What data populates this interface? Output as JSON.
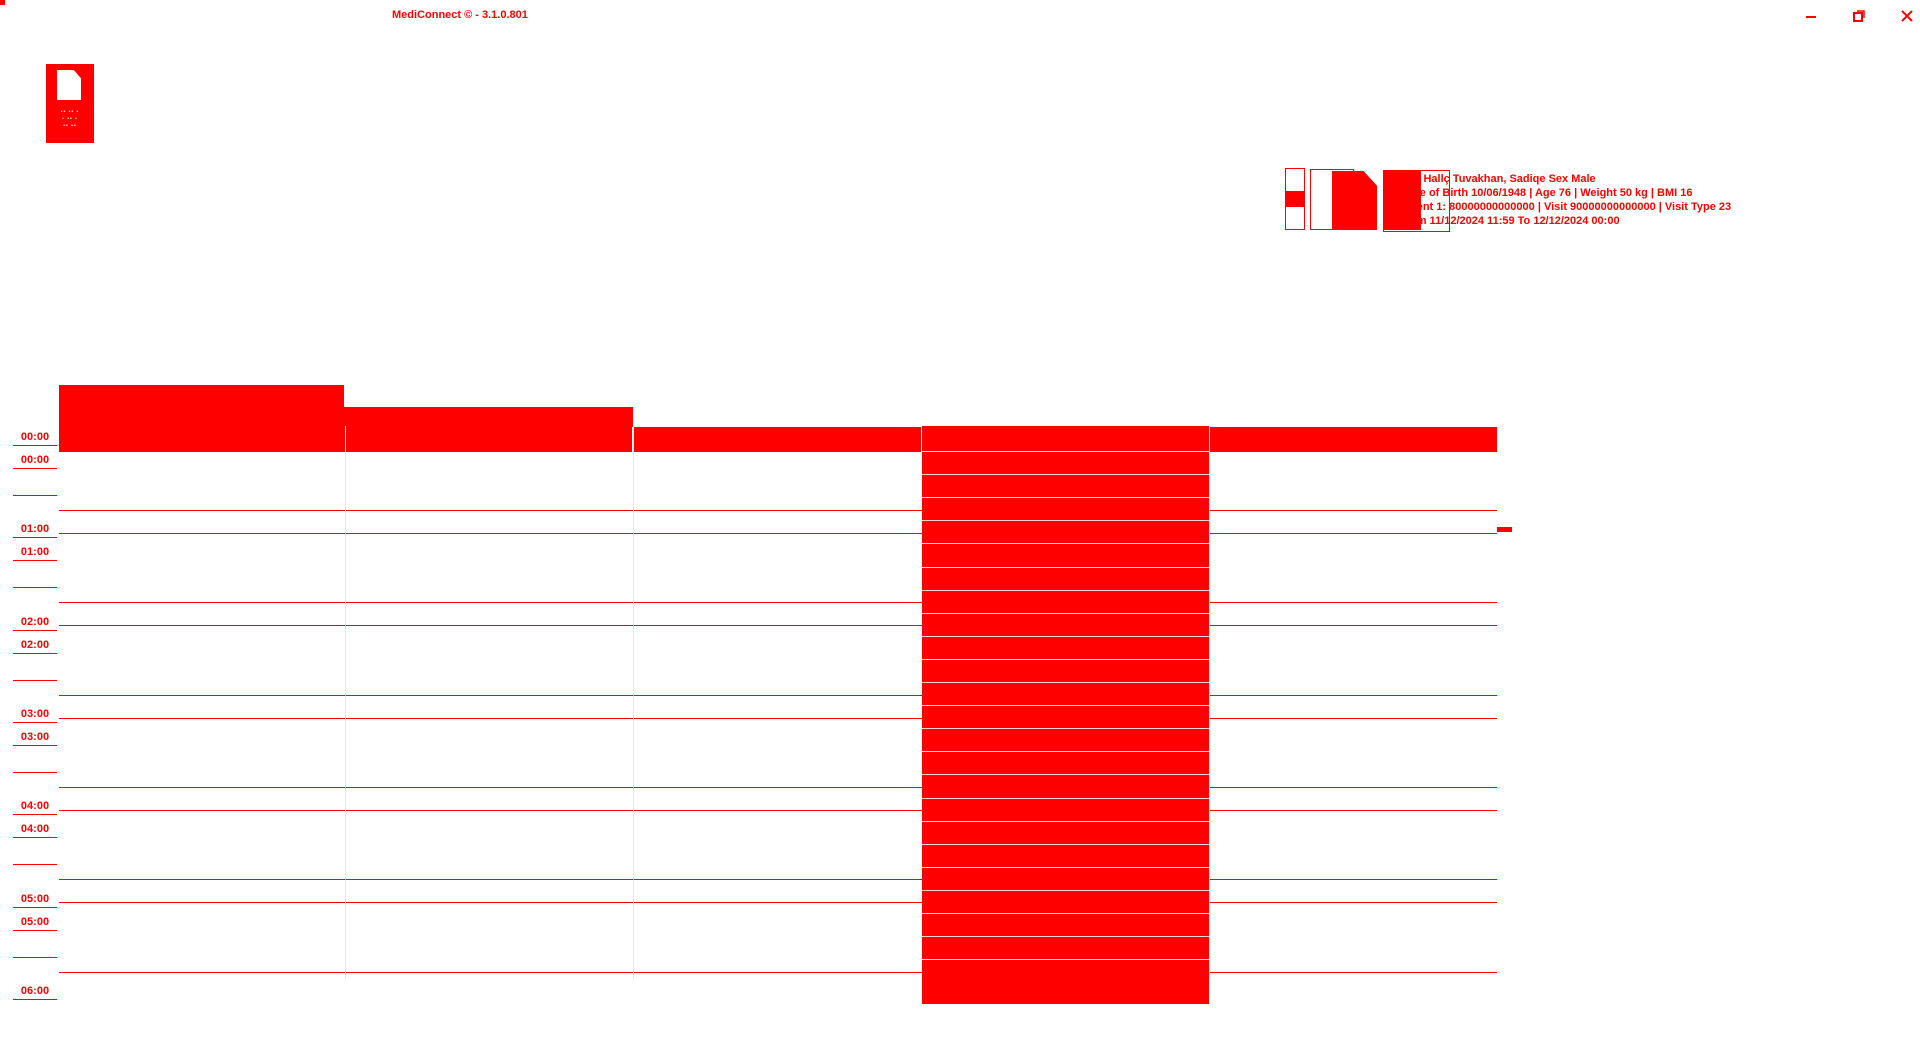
{
  "window": {
    "title": "MediConnect © - 3.1.0.801",
    "controls": {
      "minimize_icon": "minimize-icon",
      "restore_icon": "restore-icon",
      "close_icon": "close-icon"
    }
  },
  "logo": {
    "icon": "document-logo-icon"
  },
  "patient_toolbar": {
    "icons": [
      "patient-nav-icon",
      "document-outline-icon",
      "document-icon",
      "patient-card-icon"
    ]
  },
  "patient": {
    "line1": "er  Hallç Tuvakhan, Sadiqe Sex Male",
    "line2": "ate of Birth 10/06/1948 | Age 76 | Weight 50 kg | BMI 16",
    "line3": "tient 1: 80000000000000 | Visit 90000000000000 | Visit Type 23",
    "line4": "om 11/12/2024 11:59 To 12/12/2024 00:00"
  },
  "schedule": {
    "time_labels": [
      "00:00",
      "00:00",
      "01:00",
      "01:00",
      "02:00",
      "02:00",
      "03:00",
      "03:00",
      "04:00",
      "04:00",
      "05:00",
      "05:00",
      "06:00"
    ],
    "columns": 5
  },
  "colors": {
    "accent": "#ff0000",
    "background": "#ffffff"
  }
}
